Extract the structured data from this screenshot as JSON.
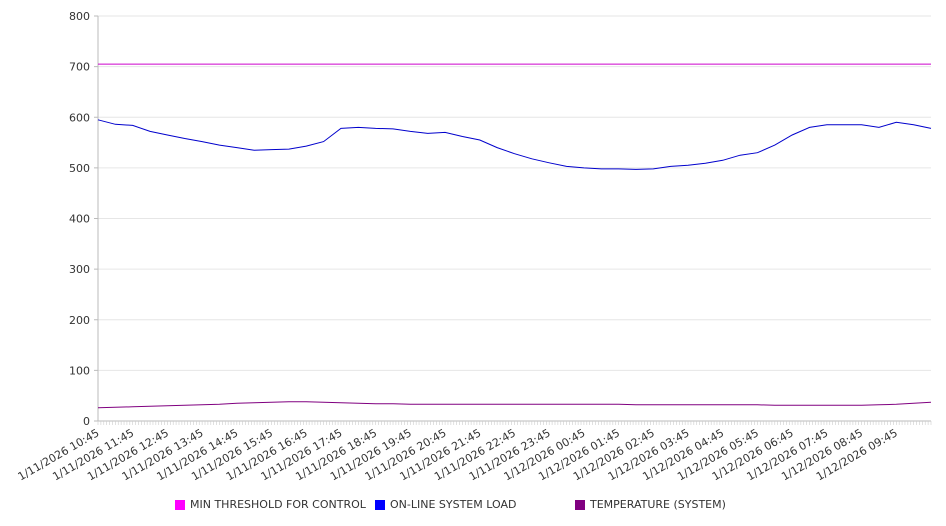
{
  "chart_data": {
    "type": "line",
    "title": "",
    "xlabel": "",
    "ylabel": "",
    "ylim": [
      0,
      800
    ],
    "yticks": [
      0,
      100,
      200,
      300,
      400,
      500,
      600,
      700,
      800
    ],
    "grid": true,
    "legend_position": "bottom",
    "x_tick_labels": [
      "1/11/2026 10:45",
      "1/11/2026 11:45",
      "1/11/2026 12:45",
      "1/11/2026 13:45",
      "1/11/2026 14:45",
      "1/11/2026 15:45",
      "1/11/2026 16:45",
      "1/11/2026 17:45",
      "1/11/2026 18:45",
      "1/11/2026 19:45",
      "1/11/2026 20:45",
      "1/11/2026 21:45",
      "1/11/2026 22:45",
      "1/11/2026 23:45",
      "1/12/2026 00:45",
      "1/12/2026 01:45",
      "1/12/2026 02:45",
      "1/12/2026 03:45",
      "1/12/2026 04:45",
      "1/12/2026 05:45",
      "1/12/2026 06:45",
      "1/12/2026 07:45",
      "1/12/2026 08:45",
      "1/12/2026 09:45"
    ],
    "x_hours_from_start": [
      0,
      0.5,
      1,
      1.5,
      2,
      2.5,
      3,
      3.5,
      4,
      4.5,
      5,
      5.5,
      6,
      6.5,
      7,
      7.5,
      8,
      8.5,
      9,
      9.5,
      10,
      10.5,
      11,
      11.5,
      12,
      12.5,
      13,
      13.5,
      14,
      14.5,
      15,
      15.5,
      16,
      16.5,
      17,
      17.5,
      18,
      18.5,
      19,
      19.5,
      20,
      20.5,
      21,
      21.5,
      22,
      22.5,
      23,
      23.5,
      24
    ],
    "series": [
      {
        "name": "MIN THRESHOLD FOR CONTROL",
        "color": "#ff00ff",
        "line_color": "#cc00cc",
        "values": [
          705,
          705,
          705,
          705,
          705,
          705,
          705,
          705,
          705,
          705,
          705,
          705,
          705,
          705,
          705,
          705,
          705,
          705,
          705,
          705,
          705,
          705,
          705,
          705,
          705,
          705,
          705,
          705,
          705,
          705,
          705,
          705,
          705,
          705,
          705,
          705,
          705,
          705,
          705,
          705,
          705,
          705,
          705,
          705,
          705,
          705,
          705,
          705,
          705
        ]
      },
      {
        "name": "ON-LINE SYSTEM LOAD",
        "color": "#0000ff",
        "line_color": "#0000cc",
        "values": [
          595,
          586,
          584,
          572,
          565,
          558,
          552,
          545,
          540,
          535,
          536,
          537,
          543,
          552,
          578,
          580,
          578,
          577,
          572,
          568,
          570,
          562,
          555,
          540,
          528,
          518,
          510,
          503,
          500,
          498,
          498,
          497,
          498,
          503,
          505,
          509,
          515,
          525,
          530,
          545,
          565,
          580,
          585,
          585,
          585,
          580,
          590,
          585,
          578
        ]
      },
      {
        "name": "TEMPERATURE (SYSTEM)",
        "color": "#800080",
        "line_color": "#800080",
        "values": [
          26,
          27,
          28,
          29,
          30,
          31,
          32,
          33,
          35,
          36,
          37,
          38,
          38,
          37,
          36,
          35,
          34,
          34,
          33,
          33,
          33,
          33,
          33,
          33,
          33,
          33,
          33,
          33,
          33,
          33,
          33,
          32,
          32,
          32,
          32,
          32,
          32,
          32,
          32,
          31,
          31,
          31,
          31,
          31,
          31,
          32,
          33,
          35,
          37
        ]
      }
    ]
  }
}
